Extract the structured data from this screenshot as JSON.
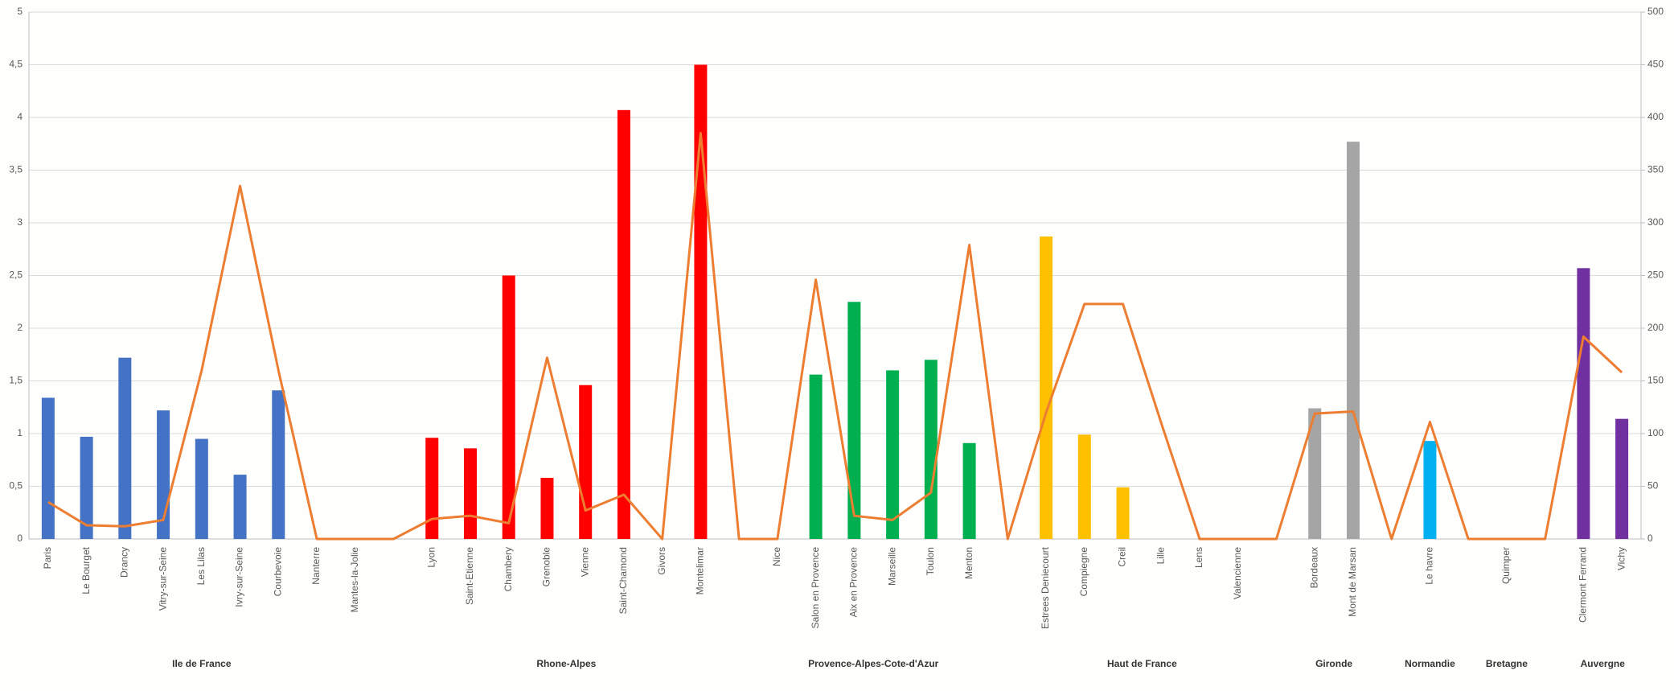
{
  "chart_data": {
    "type": "bar_line",
    "categories": [
      "Paris",
      "Le Bourget",
      "Drancy",
      "Vitry-sur-Seine",
      "Les Lilas",
      "Ivry-sur-Seine",
      "Courbevoie",
      "Nanterre",
      "Mantes-la-Jolie",
      null,
      "Lyon",
      "Saint-Etienne",
      "Chambery",
      "Grenoble",
      "Vienne",
      "Saint-Chamond",
      "Givors",
      "Montelimar",
      null,
      "Nice",
      "Salon en Provence",
      "Aix en Provence",
      "Marseille",
      "Toulon",
      "Menton",
      null,
      "Estrees Deniecourt",
      "Compiegne",
      "Creil",
      "Lille",
      "Lens",
      "Valencienne",
      null,
      "Bordeaux",
      "Mont de Marsan",
      null,
      "Le havre",
      null,
      "Quimper",
      null,
      "Clermont Ferrand",
      "Vichy"
    ],
    "category_groups": [
      "Ile de France",
      "Ile de France",
      "Ile de France",
      "Ile de France",
      "Ile de France",
      "Ile de France",
      "Ile de France",
      "Ile de France",
      "Ile de France",
      null,
      "Rhone-Alpes",
      "Rhone-Alpes",
      "Rhone-Alpes",
      "Rhone-Alpes",
      "Rhone-Alpes",
      "Rhone-Alpes",
      "Rhone-Alpes",
      "Rhone-Alpes",
      null,
      "Provence-Alpes-Cote-d'Azur",
      "Provence-Alpes-Cote-d'Azur",
      "Provence-Alpes-Cote-d'Azur",
      "Provence-Alpes-Cote-d'Azur",
      "Provence-Alpes-Cote-d'Azur",
      "Provence-Alpes-Cote-d'Azur",
      null,
      "Haut de France",
      "Haut de France",
      "Haut de France",
      "Haut de France",
      "Haut de France",
      "Haut de France",
      null,
      "Gironde",
      "Gironde",
      null,
      "Normandie",
      null,
      "Bretagne",
      null,
      "Auvergne",
      "Auvergne"
    ],
    "series": [
      {
        "type": "bar",
        "colors": [
          "#4472c4",
          "#4472c4",
          "#4472c4",
          "#4472c4",
          "#4472c4",
          "#4472c4",
          "#4472c4",
          "#4472c4",
          "#4472c4",
          null,
          "#ff0000",
          "#ff0000",
          "#ff0000",
          "#ff0000",
          "#ff0000",
          "#ff0000",
          "#ff0000",
          "#ff0000",
          null,
          "#00b050",
          "#00b050",
          "#00b050",
          "#00b050",
          "#00b050",
          "#00b050",
          null,
          "#ffc000",
          "#ffc000",
          "#ffc000",
          "#ffc000",
          "#ffc000",
          "#ffc000",
          null,
          "#a5a5a5",
          "#a5a5a5",
          null,
          "#00b0f0",
          null,
          "#4472c4",
          null,
          "#7030a0",
          "#7030a0"
        ],
        "values": [
          1.34,
          0.97,
          1.72,
          1.22,
          0.95,
          0.61,
          1.41,
          0,
          0,
          null,
          0.96,
          0.86,
          2.5,
          0.58,
          1.46,
          4.07,
          0,
          4.5,
          null,
          0,
          1.56,
          2.25,
          1.6,
          1.7,
          0.91,
          null,
          2.87,
          0.99,
          0.49,
          0,
          0,
          0,
          null,
          1.24,
          3.77,
          null,
          0.93,
          null,
          0,
          null,
          2.57,
          1.14
        ]
      },
      {
        "type": "line",
        "axis": "y2",
        "color": "#ed7d31",
        "values": [
          35,
          13,
          12,
          18,
          160,
          335,
          160,
          0,
          0,
          0,
          19,
          22,
          15,
          172,
          27,
          42,
          0,
          385,
          0,
          0,
          246,
          22,
          18,
          44,
          279,
          0,
          120,
          223,
          223,
          110,
          0,
          0,
          0,
          119,
          121,
          0,
          111,
          0,
          0,
          0,
          192,
          158
        ]
      }
    ],
    "ylim": [
      0,
      5
    ],
    "yticks": [
      0,
      {
        "value": 0.5,
        "label": "0,5"
      },
      1,
      {
        "value": 1.5,
        "label": "1,5"
      },
      2,
      {
        "value": 2.5,
        "label": "2,5"
      },
      3,
      {
        "value": 3.5,
        "label": "3,5"
      },
      4,
      {
        "value": 4.5,
        "label": "4,5"
      },
      5
    ],
    "y2lim": [
      0,
      500
    ],
    "y2ticks": [
      0,
      50,
      100,
      150,
      200,
      250,
      300,
      350,
      400,
      450,
      500
    ],
    "grid": true
  }
}
